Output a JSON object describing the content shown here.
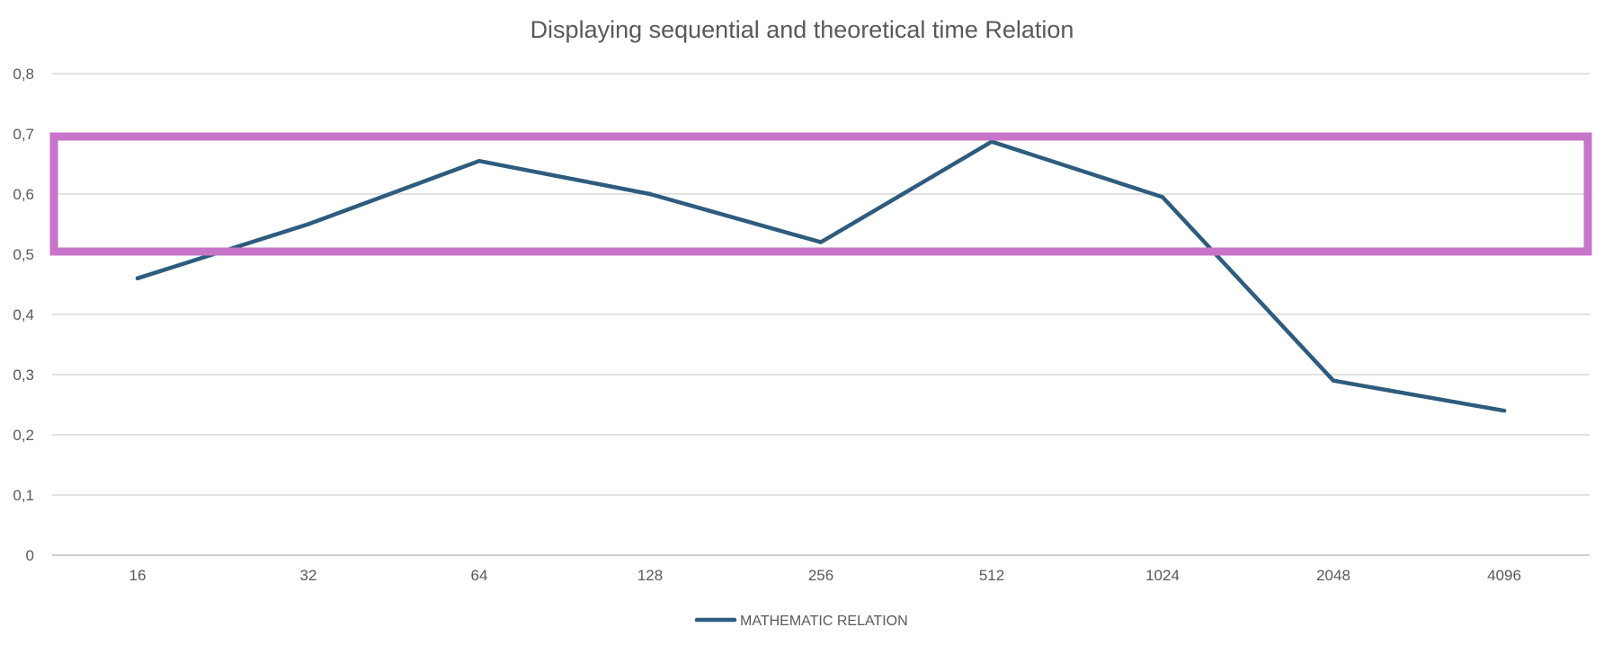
{
  "chart_data": {
    "type": "line",
    "title": "Displaying sequential and theoretical time Relation",
    "xlabel": "",
    "ylabel": "",
    "categories": [
      "16",
      "32",
      "64",
      "128",
      "256",
      "512",
      "1024",
      "2048",
      "4096"
    ],
    "series": [
      {
        "name": "MATHEMATIC RELATION",
        "color": "#2e5c7e",
        "values": [
          0.46,
          0.55,
          0.655,
          0.6,
          0.52,
          0.687,
          0.595,
          0.29,
          0.24
        ]
      }
    ],
    "ylim": [
      0,
      0.8
    ],
    "yticks": [
      0,
      0.1,
      0.2,
      0.3,
      0.4,
      0.5,
      0.6,
      0.7,
      0.8
    ],
    "ytick_labels": [
      "0",
      "0,1",
      "0,2",
      "0,3",
      "0,4",
      "0,5",
      "0,6",
      "0,7",
      "0,8"
    ],
    "grid": true,
    "legend_position": "bottom",
    "annotations": [
      {
        "type": "highlight-box",
        "y_range": [
          0.5,
          0.7
        ],
        "color": "#c774c9"
      }
    ]
  }
}
